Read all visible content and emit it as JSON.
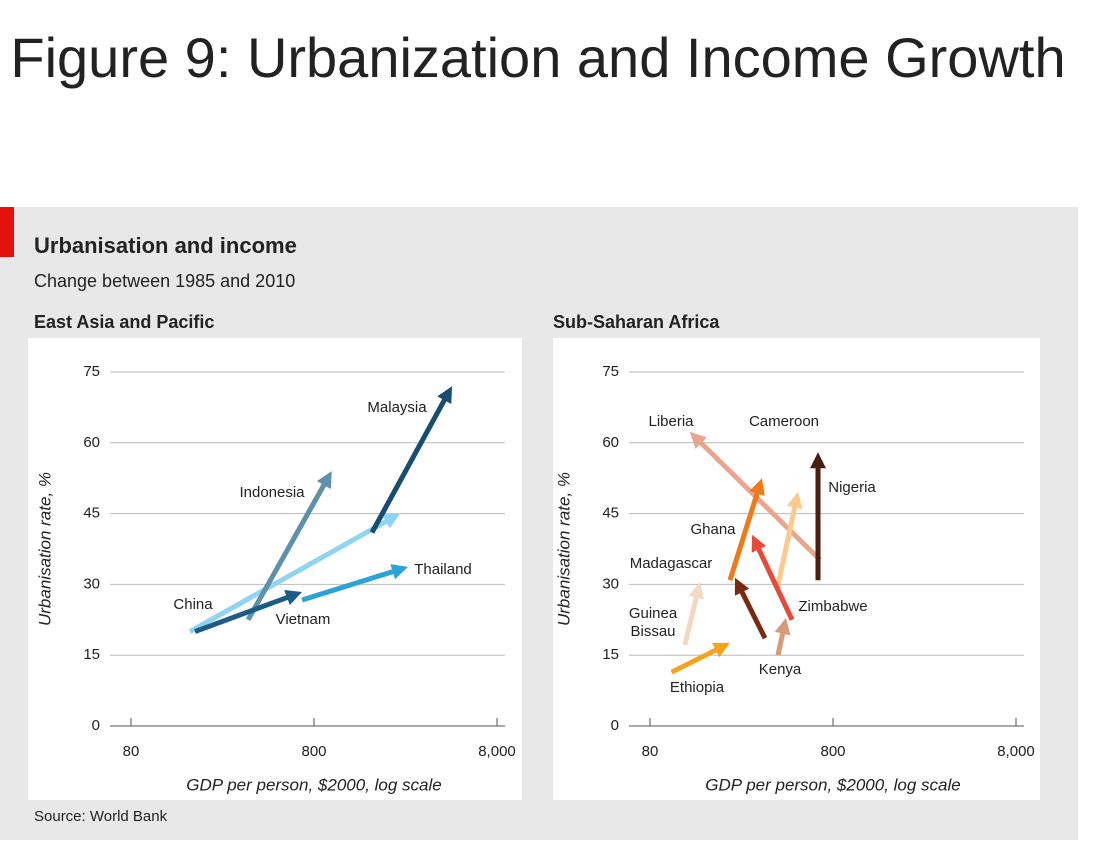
{
  "title": "Figure 9: Urbanization and Income Growth",
  "panel": {
    "title": "Urbanisation and income",
    "subtitle": "Change between 1985 and 2010",
    "source": "Source: World Bank"
  },
  "chart_data": [
    {
      "type": "arrow",
      "title": "East Asia and Pacific",
      "x_label": "GDP per person, $2000, log scale",
      "y_label": "Urbanisation rate, %",
      "xscale": "log",
      "xlim": [
        62,
        9000
      ],
      "xticks": [
        80,
        800,
        {
          "value": 8000,
          "label": "8,000"
        }
      ],
      "ylim": [
        0,
        75
      ],
      "yticks": [
        0,
        15,
        30,
        45,
        60,
        75
      ],
      "grid": true,
      "series": [
        {
          "name": "China",
          "color": "#8fd4f2",
          "x": [
            168,
            2360
          ],
          "values": [
            20,
            45
          ]
        },
        {
          "name": "Malaysia",
          "color": "#174d6e",
          "x": [
            1660,
            4540
          ],
          "values": [
            41,
            72
          ]
        },
        {
          "name": "Indonesia",
          "color": "#5e91aa",
          "x": [
            349,
            1000
          ],
          "values": [
            22.5,
            54
          ]
        },
        {
          "name": "Vietnam",
          "color": "#1c5b85",
          "x": [
            179,
            688
          ],
          "values": [
            20,
            28.4
          ]
        },
        {
          "name": "Thailand",
          "color": "#2ba3d8",
          "x": [
            688,
            2610
          ],
          "values": [
            26.7,
            33.7
          ]
        }
      ]
    },
    {
      "type": "arrow",
      "title": "Sub-Saharan Africa",
      "x_label": "GDP per person, $2000, log scale",
      "y_label": "Urbanisation rate, %",
      "xscale": "log",
      "xlim": [
        62,
        9000
      ],
      "xticks": [
        80,
        800,
        {
          "value": 8000,
          "label": "8,000"
        }
      ],
      "ylim": [
        0,
        75
      ],
      "yticks": [
        0,
        15,
        30,
        45,
        60,
        75
      ],
      "grid": true,
      "series": [
        {
          "name": "Liberia",
          "color": "#eba48d",
          "x": [
            680,
            132
          ],
          "values": [
            35.2,
            62.3
          ]
        },
        {
          "name": "Cameroon",
          "color": "#fbca8c",
          "x": [
            395,
            515
          ],
          "values": [
            28.8,
            49.6
          ]
        },
        {
          "name": "Nigeria",
          "color": "#4a1e0e",
          "x": [
            662,
            662
          ],
          "values": [
            30.9,
            58
          ]
        },
        {
          "name": "Ghana",
          "color": "#f07a18",
          "x": [
            219,
            327
          ],
          "values": [
            30.9,
            52.5
          ]
        },
        {
          "name": "Madagascar",
          "color": "#7a2a10",
          "x": [
            340,
            233
          ],
          "values": [
            18.6,
            31.4
          ]
        },
        {
          "name": "Zimbabwe",
          "color": "#e84a3a",
          "x": [
            478,
            289
          ],
          "values": [
            22.5,
            40.5
          ]
        },
        {
          "name": "Guinea Bissau",
          "color": "#f2d9c2",
          "x": [
            124,
            150
          ],
          "values": [
            17.2,
            30.5
          ]
        },
        {
          "name": "Kenya",
          "color": "#d99a78",
          "x": [
            400,
            443
          ],
          "values": [
            15,
            22.9
          ]
        },
        {
          "name": "Ethiopia",
          "color": "#f7a21b",
          "x": [
            105,
            219
          ],
          "values": [
            11.4,
            17.6
          ]
        }
      ]
    }
  ]
}
